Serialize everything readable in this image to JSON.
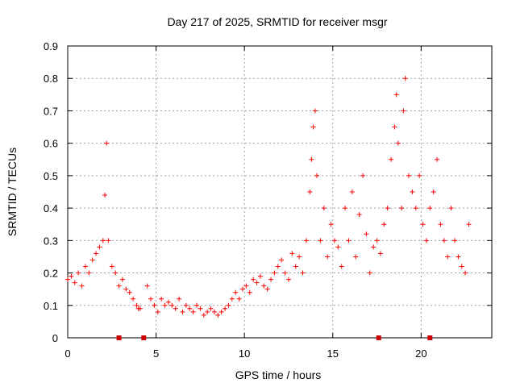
{
  "chart_data": {
    "type": "scatter",
    "title": "Day 217 of 2025, SRMTID for receiver msgr",
    "xlabel": "GPS time / hours",
    "ylabel": "SRMTID / TECUs",
    "xlim": [
      0,
      24
    ],
    "ylim": [
      0,
      0.9
    ],
    "x_ticks": [
      0,
      5,
      10,
      15,
      20
    ],
    "y_ticks": [
      0,
      0.1,
      0.2,
      0.3,
      0.4,
      0.5,
      0.6,
      0.7,
      0.8,
      0.9
    ],
    "x_tick_labels": [
      "0",
      "5",
      "10",
      "15",
      "20"
    ],
    "y_tick_labels": [
      "0",
      "0.1",
      "0.2",
      "0.3",
      "0.4",
      "0.5",
      "0.6",
      "0.7",
      "0.8",
      "0.9"
    ],
    "grid": true,
    "marker": "+",
    "color": "#ff0000",
    "gap_marker_color": "#cc0000",
    "series": [
      {
        "name": "SRMTID",
        "x": [
          0.0,
          0.2,
          0.4,
          0.6,
          0.8,
          1.0,
          1.2,
          1.4,
          1.6,
          1.8,
          2.0,
          2.1,
          2.2,
          2.3,
          2.5,
          2.7,
          2.9,
          3.1,
          3.3,
          3.5,
          3.7,
          3.9,
          4.0,
          4.1,
          4.5,
          4.7,
          4.9,
          5.1,
          5.3,
          5.5,
          5.7,
          5.9,
          6.1,
          6.3,
          6.5,
          6.7,
          6.9,
          7.1,
          7.3,
          7.5,
          7.7,
          7.9,
          8.1,
          8.3,
          8.5,
          8.7,
          8.9,
          9.1,
          9.3,
          9.5,
          9.7,
          9.9,
          10.1,
          10.3,
          10.5,
          10.7,
          10.9,
          11.1,
          11.3,
          11.5,
          11.7,
          11.9,
          12.1,
          12.3,
          12.5,
          12.7,
          12.9,
          13.1,
          13.3,
          13.5,
          13.7,
          13.8,
          13.9,
          14.0,
          14.1,
          14.3,
          14.5,
          14.7,
          14.9,
          15.1,
          15.3,
          15.5,
          15.7,
          15.9,
          16.1,
          16.3,
          16.5,
          16.7,
          16.9,
          17.1,
          17.3,
          17.5,
          17.7,
          17.9,
          18.1,
          18.3,
          18.5,
          18.6,
          18.7,
          18.9,
          19.0,
          19.1,
          19.3,
          19.5,
          19.7,
          19.9,
          20.1,
          20.3,
          20.5,
          20.7,
          20.9,
          21.1,
          21.3,
          21.5,
          21.7,
          21.9,
          22.1,
          22.3,
          22.5,
          22.7
        ],
        "y": [
          0.18,
          0.19,
          0.17,
          0.2,
          0.16,
          0.22,
          0.2,
          0.24,
          0.26,
          0.28,
          0.3,
          0.44,
          0.6,
          0.3,
          0.22,
          0.2,
          0.16,
          0.18,
          0.15,
          0.14,
          0.12,
          0.1,
          0.09,
          0.09,
          0.16,
          0.12,
          0.1,
          0.08,
          0.12,
          0.1,
          0.11,
          0.1,
          0.09,
          0.12,
          0.08,
          0.1,
          0.09,
          0.08,
          0.1,
          0.09,
          0.07,
          0.08,
          0.09,
          0.08,
          0.07,
          0.08,
          0.09,
          0.1,
          0.12,
          0.14,
          0.12,
          0.15,
          0.16,
          0.14,
          0.18,
          0.17,
          0.19,
          0.16,
          0.15,
          0.18,
          0.2,
          0.22,
          0.24,
          0.2,
          0.18,
          0.26,
          0.22,
          0.25,
          0.2,
          0.3,
          0.45,
          0.55,
          0.65,
          0.7,
          0.5,
          0.3,
          0.4,
          0.25,
          0.35,
          0.3,
          0.28,
          0.22,
          0.4,
          0.3,
          0.45,
          0.25,
          0.38,
          0.5,
          0.32,
          0.2,
          0.28,
          0.3,
          0.26,
          0.35,
          0.4,
          0.55,
          0.65,
          0.75,
          0.6,
          0.4,
          0.7,
          0.8,
          0.5,
          0.45,
          0.4,
          0.5,
          0.35,
          0.3,
          0.4,
          0.45,
          0.55,
          0.35,
          0.3,
          0.25,
          0.4,
          0.3,
          0.25,
          0.22,
          0.2,
          0.35
        ]
      }
    ],
    "gap_markers_x": [
      2.9,
      4.3,
      17.6,
      20.5
    ]
  }
}
